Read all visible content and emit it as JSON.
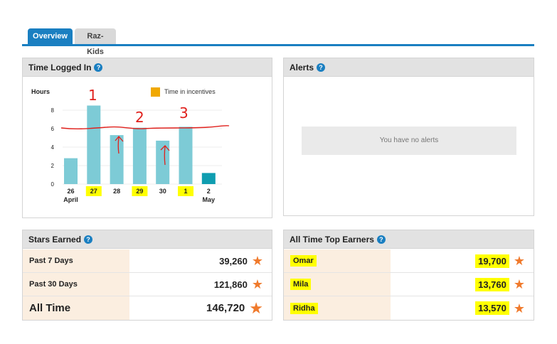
{
  "tabs": [
    {
      "label": "Overview",
      "active": true
    },
    {
      "label": "Raz-Kids",
      "active": false
    }
  ],
  "time_panel": {
    "title": "Time Logged In"
  },
  "alerts_panel": {
    "title": "Alerts",
    "empty_text": "You have no alerts"
  },
  "stars_panel": {
    "title": "Stars Earned",
    "rows": [
      {
        "label": "Past 7 Days",
        "value": "39,260"
      },
      {
        "label": "Past 30 Days",
        "value": "121,860"
      },
      {
        "label": "All Time",
        "value": "146,720"
      }
    ]
  },
  "top_panel": {
    "title": "All Time Top Earners",
    "rows": [
      {
        "label": "Omar",
        "value": "19,700"
      },
      {
        "label": "Mila",
        "value": "13,760"
      },
      {
        "label": "Ridha",
        "value": "13,570"
      }
    ]
  },
  "annotations": {
    "labels": [
      "1",
      "2",
      "3"
    ]
  },
  "colors": {
    "accent": "#1a7fc1",
    "bar": "#7dcbd6",
    "bar_last": "#0f9db0",
    "incentive": "#f0a800",
    "star": "#f07a2c",
    "highlight": "#ffff00",
    "annotation": "#e0201c"
  },
  "chart_data": {
    "type": "bar",
    "ylabel": "Hours",
    "ylim": [
      0,
      8
    ],
    "yticks": [
      0,
      2,
      4,
      6,
      8
    ],
    "categories": [
      {
        "day": "26",
        "month": "April",
        "highlight": false
      },
      {
        "day": "27",
        "month": "",
        "highlight": true
      },
      {
        "day": "28",
        "month": "",
        "highlight": false
      },
      {
        "day": "29",
        "month": "",
        "highlight": true
      },
      {
        "day": "30",
        "month": "",
        "highlight": false
      },
      {
        "day": "1",
        "month": "",
        "highlight": true
      },
      {
        "day": "2",
        "month": "May",
        "highlight": false
      }
    ],
    "series": [
      {
        "name": "",
        "values": [
          2.8,
          8.5,
          5.3,
          6.1,
          4.7,
          6.2,
          1.2
        ]
      }
    ],
    "legend": {
      "label": "Time in incentives",
      "position": "top-right"
    }
  }
}
